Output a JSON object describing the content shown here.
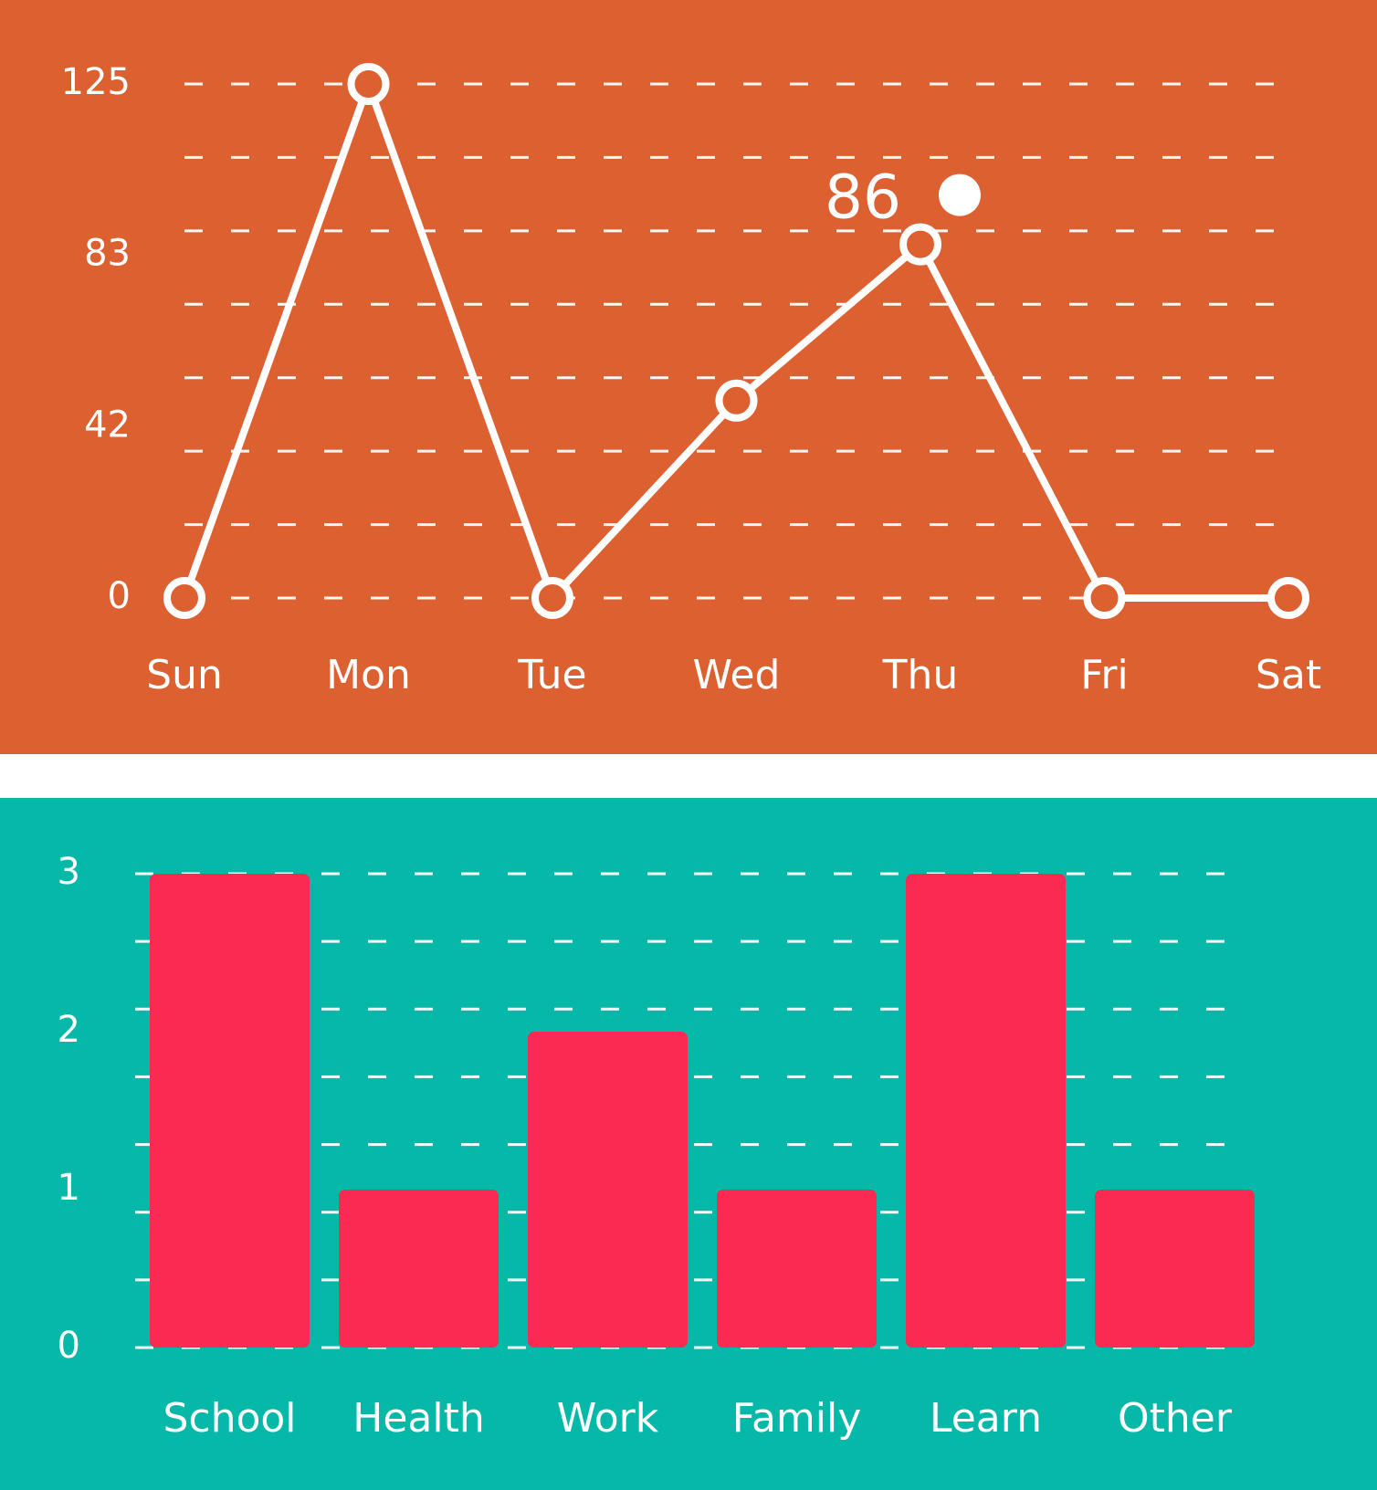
{
  "chart_data": [
    {
      "type": "line",
      "categories": [
        "Sun",
        "Mon",
        "Tue",
        "Wed",
        "Thu",
        "Fri",
        "Sat"
      ],
      "series": [
        {
          "values": [
            0,
            125,
            0,
            48,
            86,
            0,
            0
          ]
        }
      ],
      "y_ticks": [
        "0",
        "42",
        "83",
        "125"
      ],
      "ylim": [
        0,
        125
      ],
      "highlight": {
        "index": 4,
        "label": "86"
      },
      "grid": "dashed",
      "colors": {
        "background": "#DC6030",
        "line": "#FFFFFF"
      }
    },
    {
      "type": "bar",
      "categories": [
        "School",
        "Health",
        "Work",
        "Family",
        "Learn",
        "Other"
      ],
      "series": [
        {
          "values": [
            3,
            1,
            2,
            1,
            3,
            1
          ]
        }
      ],
      "y_ticks": [
        "0",
        "1",
        "2",
        "3"
      ],
      "ylim": [
        0,
        3
      ],
      "grid": "dashed",
      "colors": {
        "background": "#06B8A8",
        "bar": "#FB2A52"
      }
    }
  ]
}
